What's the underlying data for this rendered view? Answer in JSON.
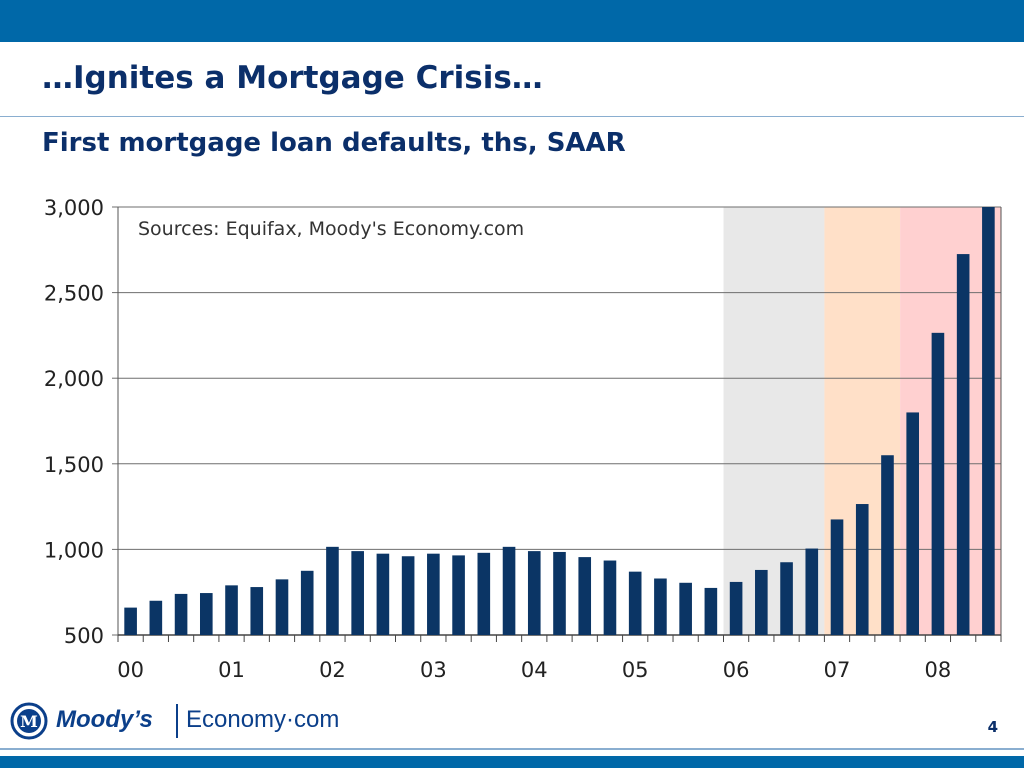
{
  "slide": {
    "title": "…Ignites a Mortgage Crisis…",
    "page_number": "4"
  },
  "logo": {
    "mark": "M",
    "brand": "Moody’s",
    "product": "Economy·com"
  },
  "colors": {
    "top_bar": "#0068a8",
    "title": "#0b2f6a",
    "bar": "#0b3565",
    "shade_gray": "#e8e8e8",
    "shade_peach": "#ffe0c8",
    "shade_pink": "#ffd0d0"
  },
  "chart_data": {
    "type": "bar",
    "title": "First mortgage loan defaults, ths, SAAR",
    "annotation": "Sources: Equifax, Moody's Economy.com",
    "xlabel": "",
    "ylabel": "",
    "ylim": [
      500,
      3000
    ],
    "yticks": [
      500,
      1000,
      1500,
      2000,
      2500,
      3000
    ],
    "ytick_labels": [
      "500",
      "1,000",
      "1,500",
      "2,000",
      "2,500",
      "3,000"
    ],
    "year_labels": [
      "00",
      "01",
      "02",
      "03",
      "04",
      "05",
      "06",
      "07",
      "08"
    ],
    "grid": true,
    "frequency": "quarterly",
    "categories": [
      "2000Q1",
      "2000Q2",
      "2000Q3",
      "2000Q4",
      "2001Q1",
      "2001Q2",
      "2001Q3",
      "2001Q4",
      "2002Q1",
      "2002Q2",
      "2002Q3",
      "2002Q4",
      "2003Q1",
      "2003Q2",
      "2003Q3",
      "2003Q4",
      "2004Q1",
      "2004Q2",
      "2004Q3",
      "2004Q4",
      "2005Q1",
      "2005Q2",
      "2005Q3",
      "2005Q4",
      "2006Q1",
      "2006Q2",
      "2006Q3",
      "2006Q4",
      "2007Q1",
      "2007Q2",
      "2007Q3",
      "2007Q4",
      "2008Q1",
      "2008Q2",
      "2008Q3"
    ],
    "values": [
      660,
      700,
      740,
      745,
      790,
      780,
      825,
      875,
      1015,
      990,
      975,
      960,
      975,
      965,
      980,
      1015,
      990,
      985,
      955,
      935,
      870,
      830,
      805,
      775,
      810,
      880,
      925,
      1005,
      1175,
      1265,
      1550,
      1800,
      2265,
      2725,
      3000
    ],
    "shaded_regions": [
      {
        "start": "2006Q1",
        "end": "2006Q4",
        "color": "#e8e8e8"
      },
      {
        "start": "2007Q1",
        "end": "2007Q3",
        "color": "#ffe0c8"
      },
      {
        "start": "2007Q4",
        "end": "2008Q3",
        "color": "#ffd0d0"
      }
    ]
  }
}
